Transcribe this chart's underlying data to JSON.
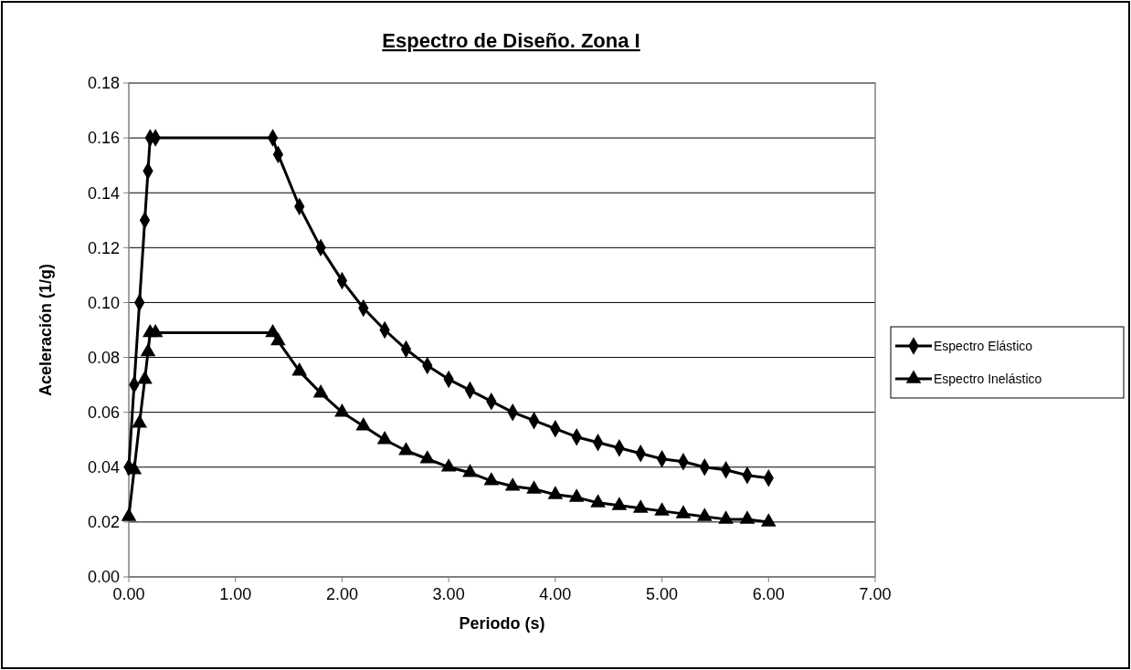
{
  "chart_data": {
    "type": "line",
    "title": "Espectro de Diseño. Zona I",
    "xlabel": "Periodo (s)",
    "ylabel": "Aceleración (1/g)",
    "x": [
      0,
      0.05,
      0.1,
      0.15,
      0.18,
      0.2,
      0.25,
      1.35,
      1.4,
      1.6,
      1.8,
      2.0,
      2.2,
      2.4,
      2.6,
      2.8,
      3.0,
      3.2,
      3.4,
      3.6,
      3.8,
      4.0,
      4.2,
      4.4,
      4.6,
      4.8,
      5.0,
      5.2,
      5.4,
      5.6,
      5.8,
      6.0
    ],
    "series": [
      {
        "name": "Espectro Elástico",
        "color": "#000000",
        "marker": "diamond",
        "values": [
          0.04,
          0.07,
          0.1,
          0.13,
          0.148,
          0.16,
          0.16,
          0.16,
          0.154,
          0.135,
          0.12,
          0.108,
          0.098,
          0.09,
          0.083,
          0.077,
          0.072,
          0.068,
          0.064,
          0.06,
          0.057,
          0.054,
          0.051,
          0.049,
          0.047,
          0.045,
          0.043,
          0.042,
          0.04,
          0.039,
          0.037,
          0.036
        ]
      },
      {
        "name": "Espectro Inelástico",
        "color": "#000000",
        "marker": "triangle",
        "values": [
          0.022,
          0.039,
          0.056,
          0.072,
          0.082,
          0.089,
          0.089,
          0.089,
          0.086,
          0.075,
          0.067,
          0.06,
          0.055,
          0.05,
          0.046,
          0.043,
          0.04,
          0.038,
          0.035,
          0.033,
          0.032,
          0.03,
          0.029,
          0.027,
          0.026,
          0.025,
          0.024,
          0.023,
          0.022,
          0.021,
          0.021,
          0.02
        ]
      }
    ],
    "xlim": [
      0,
      7
    ],
    "xticks": [
      {
        "value": 0,
        "label": "0.00"
      },
      {
        "value": 1,
        "label": "1.00"
      },
      {
        "value": 2,
        "label": "2.00"
      },
      {
        "value": 3,
        "label": "3.00"
      },
      {
        "value": 4,
        "label": "4.00"
      },
      {
        "value": 5,
        "label": "5.00"
      },
      {
        "value": 6,
        "label": "6.00"
      },
      {
        "value": 7,
        "label": "7.00"
      }
    ],
    "ylim": [
      0,
      0.18
    ],
    "yticks": [
      {
        "value": 0,
        "label": "0.00"
      },
      {
        "value": 0.02,
        "label": "0.02"
      },
      {
        "value": 0.04,
        "label": "0.04"
      },
      {
        "value": 0.06,
        "label": "0.06"
      },
      {
        "value": 0.08,
        "label": "0.08"
      },
      {
        "value": 0.1,
        "label": "0.10"
      },
      {
        "value": 0.12,
        "label": "0.12"
      },
      {
        "value": 0.14,
        "label": "0.14"
      },
      {
        "value": 0.16,
        "label": "0.16"
      },
      {
        "value": 0.18,
        "label": "0.18"
      }
    ],
    "grid": "y",
    "legend": "right",
    "line_style": "solid"
  }
}
